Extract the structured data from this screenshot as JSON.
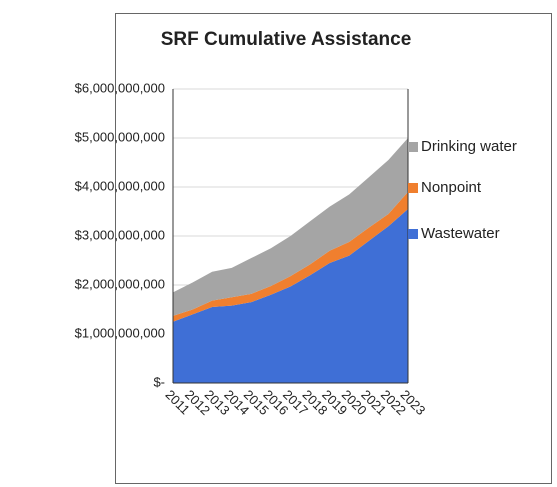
{
  "chart_data": {
    "type": "stacked_area",
    "title": "SRF Cumulative Assistance",
    "categories": [
      "2011",
      "2012",
      "2013",
      "2014",
      "2015",
      "2016",
      "2017",
      "2018",
      "2019",
      "2020",
      "2021",
      "2022",
      "2023"
    ],
    "series": [
      {
        "name": "Wastewater",
        "color": "#3f6fd6",
        "values": [
          1250000000,
          1400000000,
          1550000000,
          1580000000,
          1650000000,
          1800000000,
          1970000000,
          2200000000,
          2450000000,
          2600000000,
          2900000000,
          3200000000,
          3550000000
        ]
      },
      {
        "name": "Nonpoint",
        "color": "#f07f2e",
        "values": [
          120000000,
          100000000,
          130000000,
          170000000,
          170000000,
          180000000,
          210000000,
          220000000,
          250000000,
          280000000,
          270000000,
          250000000,
          350000000
        ]
      },
      {
        "name": "Drinking water",
        "color": "#a5a5a5",
        "values": [
          480000000,
          550000000,
          590000000,
          600000000,
          730000000,
          770000000,
          820000000,
          880000000,
          900000000,
          970000000,
          1030000000,
          1100000000,
          1100000000
        ]
      }
    ],
    "ylim": [
      0,
      6000000000
    ],
    "yticks": [
      {
        "value": 0,
        "label": "$-"
      },
      {
        "value": 1000000000,
        "label": "$1,000,000,000"
      },
      {
        "value": 2000000000,
        "label": "$2,000,000,000"
      },
      {
        "value": 3000000000,
        "label": "$3,000,000,000"
      },
      {
        "value": 4000000000,
        "label": "$4,000,000,000"
      },
      {
        "value": 5000000000,
        "label": "$5,000,000,000"
      },
      {
        "value": 6000000000,
        "label": "$6,000,000,000"
      }
    ],
    "grid": true
  }
}
